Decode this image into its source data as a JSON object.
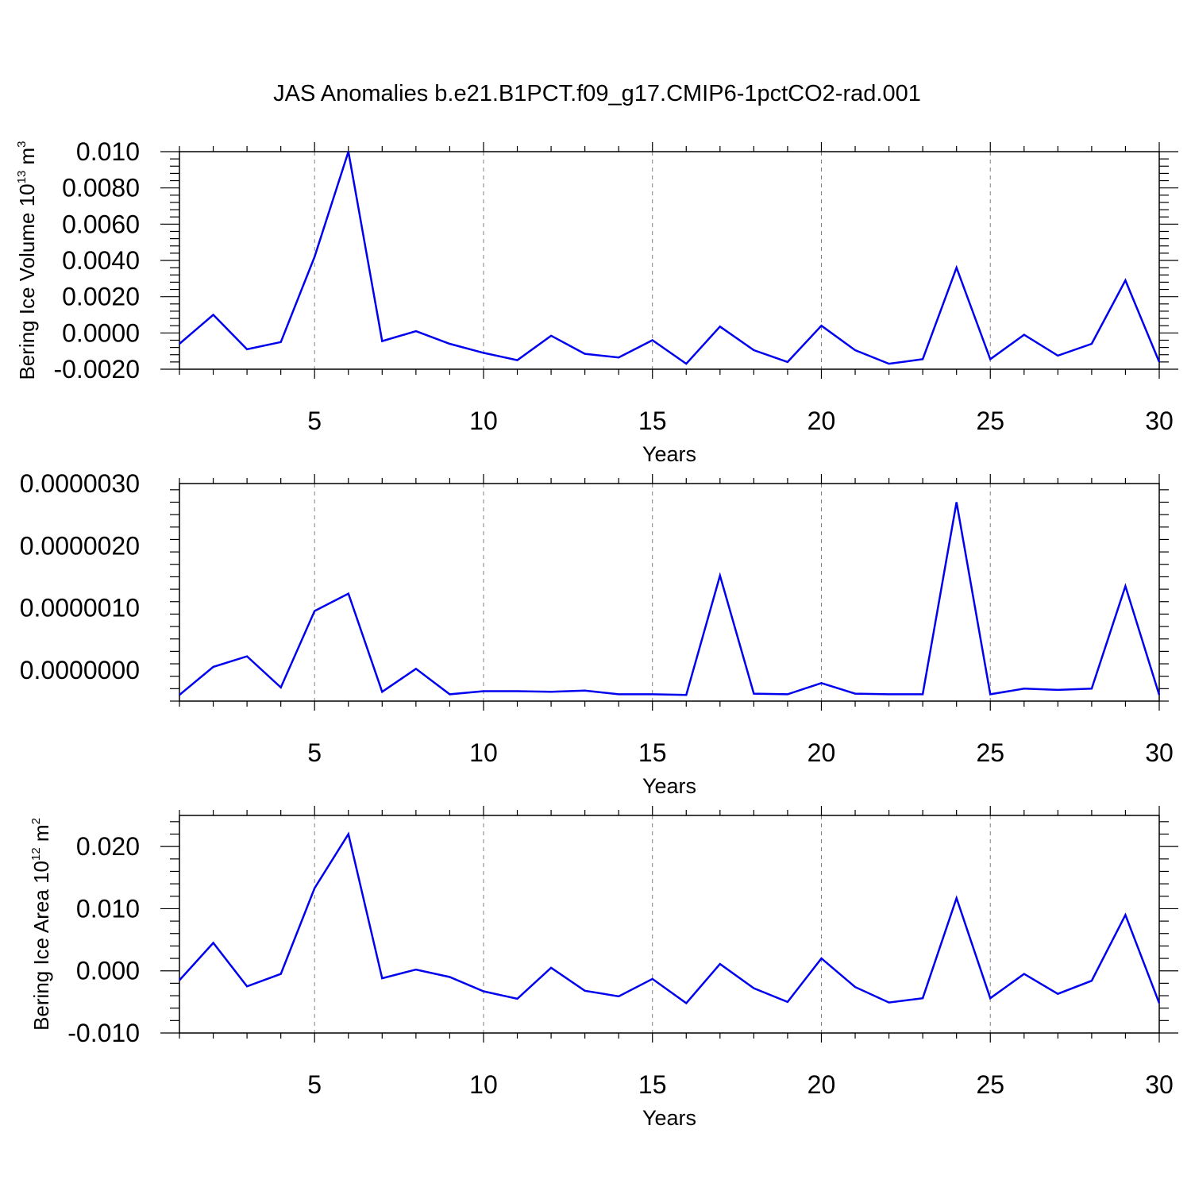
{
  "title": "JAS Anomalies b.e21.B1PCT.f09_g17.CMIP6-1pctCO2-rad.001",
  "colors": {
    "line": "#0000ee",
    "axis": "#000000",
    "grid": "#808080"
  },
  "chart_data": [
    {
      "type": "line",
      "xlabel": "Years",
      "ylabel_main": "Bering Ice Volume 10",
      "ylabel_sup": "13",
      "ylabel_unit": " m",
      "ylabel_unit_sup": "3",
      "xlim": [
        1,
        30
      ],
      "ylim": [
        -0.002,
        0.01
      ],
      "xticks": [
        5,
        10,
        15,
        20,
        25,
        30
      ],
      "yticks": [
        -0.002,
        0,
        0.002,
        0.004,
        0.006,
        0.008,
        0.01
      ],
      "ytick_labels": [
        "-0.0020",
        "0.0000",
        "0.0020",
        "0.0040",
        "0.0060",
        "0.0080",
        "0.010"
      ],
      "x": [
        1,
        2,
        3,
        4,
        5,
        6,
        7,
        8,
        9,
        10,
        11,
        12,
        13,
        14,
        15,
        16,
        17,
        18,
        19,
        20,
        21,
        22,
        23,
        24,
        25,
        26,
        27,
        28,
        29,
        30
      ],
      "series": [
        {
          "values": [
            -0.0006,
            0.001,
            -0.0009,
            -0.0005,
            0.0042,
            0.01,
            -0.00045,
            0.0001,
            -0.0006,
            -0.0011,
            -0.0015,
            -0.00015,
            -0.00115,
            -0.00135,
            -0.0004,
            -0.0017,
            0.00035,
            -0.00095,
            -0.0016,
            0.0004,
            -0.00095,
            -0.0017,
            -0.00145,
            0.0036,
            -0.00145,
            -0.0001,
            -0.00125,
            -0.0006,
            0.0029,
            -0.0016
          ]
        }
      ],
      "grid": "vertical dashed at major x ticks"
    },
    {
      "type": "line",
      "xlabel": "Years",
      "ylabel_main": "",
      "xlim": [
        1,
        30
      ],
      "ylim": [
        -5e-07,
        3e-06
      ],
      "xticks": [
        5,
        10,
        15,
        20,
        25,
        30
      ],
      "yticks": [
        0,
        1e-06,
        2e-06,
        3e-06
      ],
      "ytick_labels": [
        "0.0000000",
        "0.0000010",
        "0.0000020",
        "0.0000030"
      ],
      "x": [
        1,
        2,
        3,
        4,
        5,
        6,
        7,
        8,
        9,
        10,
        11,
        12,
        13,
        14,
        15,
        16,
        17,
        18,
        19,
        20,
        21,
        22,
        23,
        24,
        25,
        26,
        27,
        28,
        29,
        30
      ],
      "series": [
        {
          "values": [
            -4e-07,
            5e-08,
            2.2e-07,
            -2.8e-07,
            9.5e-07,
            1.23e-06,
            -3.5e-07,
            2e-08,
            -3.9e-07,
            -3.4e-07,
            -3.4e-07,
            -3.5e-07,
            -3.3e-07,
            -3.9e-07,
            -3.9e-07,
            -4e-07,
            1.52e-06,
            -3.8e-07,
            -3.9e-07,
            -2.1e-07,
            -3.8e-07,
            -3.9e-07,
            -3.9e-07,
            2.7e-06,
            -3.9e-07,
            -3e-07,
            -3.2e-07,
            -3e-07,
            1.35e-06,
            -4e-07
          ]
        }
      ],
      "grid": "vertical dashed at major x ticks"
    },
    {
      "type": "line",
      "xlabel": "Years",
      "ylabel_main": "Bering Ice Area 10",
      "ylabel_sup": "12",
      "ylabel_unit": " m",
      "ylabel_unit_sup": "2",
      "xlim": [
        1,
        30
      ],
      "ylim": [
        -0.01,
        0.025
      ],
      "xticks": [
        5,
        10,
        15,
        20,
        25,
        30
      ],
      "yticks": [
        -0.01,
        0,
        0.01,
        0.02
      ],
      "ytick_labels": [
        "-0.010",
        "0.000",
        "0.010",
        "0.020"
      ],
      "x": [
        1,
        2,
        3,
        4,
        5,
        6,
        7,
        8,
        9,
        10,
        11,
        12,
        13,
        14,
        15,
        16,
        17,
        18,
        19,
        20,
        21,
        22,
        23,
        24,
        25,
        26,
        27,
        28,
        29,
        30
      ],
      "series": [
        {
          "values": [
            -0.0015,
            0.0045,
            -0.0025,
            -0.0005,
            0.0133,
            0.022,
            -0.0012,
            0.0002,
            -0.001,
            -0.0033,
            -0.0045,
            0.0005,
            -0.0032,
            -0.0041,
            -0.0013,
            -0.0052,
            0.0011,
            -0.0028,
            -0.005,
            0.002,
            -0.0026,
            -0.0051,
            -0.0044,
            0.0117,
            -0.0044,
            -0.0005,
            -0.0037,
            -0.0016,
            0.009,
            -0.0052
          ]
        }
      ],
      "grid": "vertical dashed at major x ticks"
    }
  ]
}
